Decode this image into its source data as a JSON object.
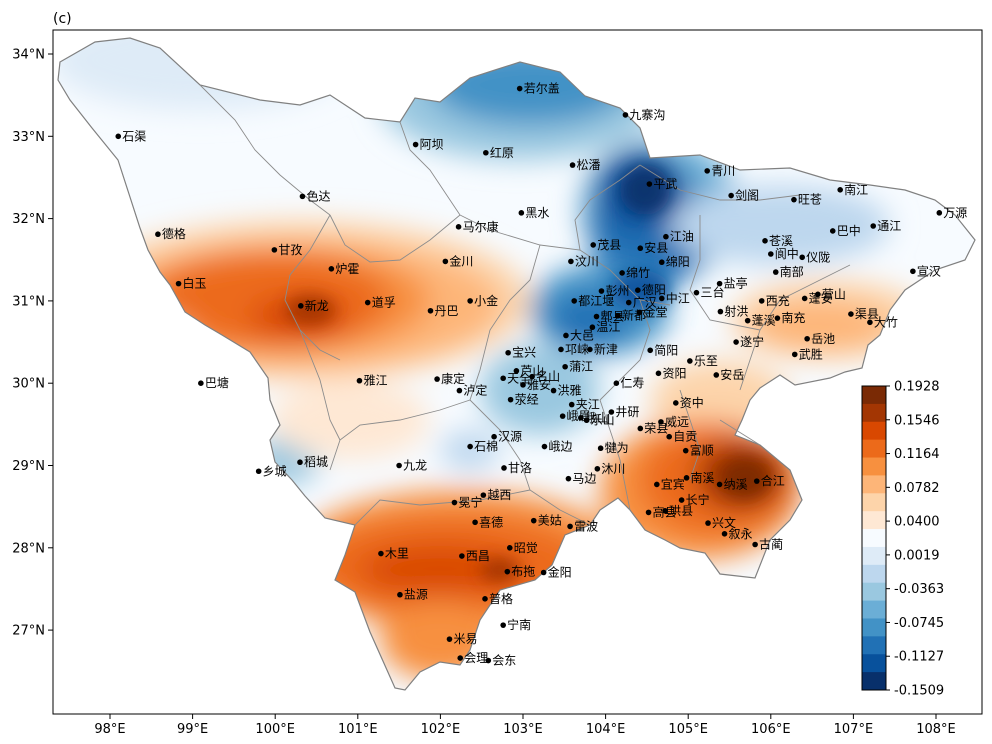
{
  "panel_label": "(c)",
  "axes": {
    "lon_ticks": [
      {
        "value": 98,
        "label": "98°E"
      },
      {
        "value": 99,
        "label": "99°E"
      },
      {
        "value": 100,
        "label": "100°E"
      },
      {
        "value": 101,
        "label": "101°E"
      },
      {
        "value": 102,
        "label": "102°E"
      },
      {
        "value": 103,
        "label": "103°E"
      },
      {
        "value": 104,
        "label": "104°E"
      },
      {
        "value": 105,
        "label": "105°E"
      },
      {
        "value": 106,
        "label": "106°E"
      },
      {
        "value": 107,
        "label": "107°E"
      },
      {
        "value": 108,
        "label": "108°E"
      }
    ],
    "lat_ticks": [
      {
        "value": 34,
        "label": "34°N"
      },
      {
        "value": 33,
        "label": "33°N"
      },
      {
        "value": 32,
        "label": "32°N"
      },
      {
        "value": 31,
        "label": "31°N"
      },
      {
        "value": 30,
        "label": "30°N"
      },
      {
        "value": 29,
        "label": "29°N"
      },
      {
        "value": 28,
        "label": "28°N"
      },
      {
        "value": 27,
        "label": "27°N"
      }
    ]
  },
  "colorbar": {
    "tick_labels": [
      "0.1928",
      "0.1546",
      "0.1164",
      "0.0782",
      "0.0400",
      "0.0019",
      "-0.0363",
      "-0.0745",
      "-0.1127",
      "-0.1509"
    ],
    "colors": [
      "#7a2a05",
      "#a33603",
      "#d94801",
      "#ec6a1a",
      "#f7903f",
      "#fdb578",
      "#fdd4aa",
      "#fee8d4",
      "#f7fbff",
      "#deebf7",
      "#bdd7ee",
      "#9ac8e0",
      "#6baed6",
      "#4292c6",
      "#2171b5",
      "#08519c",
      "#08306b"
    ]
  },
  "field_colors": {
    "background": "#f7fbff",
    "border": "#808080"
  },
  "stations": [
    {
      "name": "石渠",
      "lon": 98.1,
      "lat": 33.0
    },
    {
      "name": "若尔盖",
      "lon": 102.96,
      "lat": 33.58
    },
    {
      "name": "九寨沟",
      "lon": 104.24,
      "lat": 33.26
    },
    {
      "name": "阿坝",
      "lon": 101.7,
      "lat": 32.9
    },
    {
      "name": "红原",
      "lon": 102.55,
      "lat": 32.8
    },
    {
      "name": "松潘",
      "lon": 103.6,
      "lat": 32.65
    },
    {
      "name": "平武",
      "lon": 104.53,
      "lat": 32.42
    },
    {
      "name": "青川",
      "lon": 105.23,
      "lat": 32.58
    },
    {
      "name": "色达",
      "lon": 100.33,
      "lat": 32.27
    },
    {
      "name": "马尔康",
      "lon": 102.22,
      "lat": 31.9
    },
    {
      "name": "黑水",
      "lon": 102.98,
      "lat": 32.07
    },
    {
      "name": "剑阁",
      "lon": 105.52,
      "lat": 32.28
    },
    {
      "name": "旺苍",
      "lon": 106.28,
      "lat": 32.23
    },
    {
      "name": "南江",
      "lon": 106.84,
      "lat": 32.35
    },
    {
      "name": "万源",
      "lon": 108.04,
      "lat": 32.07
    },
    {
      "name": "德格",
      "lon": 98.58,
      "lat": 31.81
    },
    {
      "name": "江油",
      "lon": 104.73,
      "lat": 31.78
    },
    {
      "name": "苍溪",
      "lon": 105.93,
      "lat": 31.73
    },
    {
      "name": "巴中",
      "lon": 106.75,
      "lat": 31.85
    },
    {
      "name": "通江",
      "lon": 107.24,
      "lat": 31.91
    },
    {
      "name": "茂县",
      "lon": 103.85,
      "lat": 31.68
    },
    {
      "name": "安县",
      "lon": 104.42,
      "lat": 31.64
    },
    {
      "name": "阆中",
      "lon": 106.0,
      "lat": 31.57
    },
    {
      "name": "甘孜",
      "lon": 99.99,
      "lat": 31.62
    },
    {
      "name": "金川",
      "lon": 102.06,
      "lat": 31.48
    },
    {
      "name": "汶川",
      "lon": 103.58,
      "lat": 31.48
    },
    {
      "name": "绵竹",
      "lon": 104.2,
      "lat": 31.34
    },
    {
      "name": "绵阳",
      "lon": 104.68,
      "lat": 31.47
    },
    {
      "name": "仪陇",
      "lon": 106.38,
      "lat": 31.53
    },
    {
      "name": "宣汉",
      "lon": 107.72,
      "lat": 31.36
    },
    {
      "name": "炉霍",
      "lon": 100.68,
      "lat": 31.39
    },
    {
      "name": "盐亭",
      "lon": 105.38,
      "lat": 31.21
    },
    {
      "name": "南部",
      "lon": 106.06,
      "lat": 31.35
    },
    {
      "name": "营山",
      "lon": 106.57,
      "lat": 31.08
    },
    {
      "name": "白玉",
      "lon": 98.83,
      "lat": 31.21
    },
    {
      "name": "彭州",
      "lon": 103.95,
      "lat": 31.12
    },
    {
      "name": "德阳",
      "lon": 104.39,
      "lat": 31.13
    },
    {
      "name": "三台",
      "lon": 105.1,
      "lat": 31.1
    },
    {
      "name": "都江堰",
      "lon": 103.62,
      "lat": 31.0
    },
    {
      "name": "广汉",
      "lon": 104.28,
      "lat": 30.98
    },
    {
      "name": "中江",
      "lon": 104.68,
      "lat": 31.03
    },
    {
      "name": "西充",
      "lon": 105.89,
      "lat": 31.0
    },
    {
      "name": "蓬安",
      "lon": 106.41,
      "lat": 31.03
    },
    {
      "name": "渠县",
      "lon": 106.97,
      "lat": 30.84
    },
    {
      "name": "新龙",
      "lon": 100.31,
      "lat": 30.94
    },
    {
      "name": "道孚",
      "lon": 101.12,
      "lat": 30.98
    },
    {
      "name": "小金",
      "lon": 102.36,
      "lat": 31.0
    },
    {
      "name": "丹巴",
      "lon": 101.88,
      "lat": 30.88
    },
    {
      "name": "郫县",
      "lon": 103.89,
      "lat": 30.81
    },
    {
      "name": "射洪",
      "lon": 105.39,
      "lat": 30.87
    },
    {
      "name": "蓬溪",
      "lon": 105.72,
      "lat": 30.76
    },
    {
      "name": "南充",
      "lon": 106.08,
      "lat": 30.79
    },
    {
      "name": "大竹",
      "lon": 107.2,
      "lat": 30.74
    },
    {
      "name": "金堂",
      "lon": 104.41,
      "lat": 30.86
    },
    {
      "name": "大邑",
      "lon": 103.52,
      "lat": 30.58
    },
    {
      "name": "温江",
      "lon": 103.84,
      "lat": 30.68
    },
    {
      "name": "新都",
      "lon": 104.15,
      "lat": 30.82
    },
    {
      "name": "岳池",
      "lon": 106.44,
      "lat": 30.54
    },
    {
      "name": "宝兴",
      "lon": 102.82,
      "lat": 30.37
    },
    {
      "name": "邛崃",
      "lon": 103.46,
      "lat": 30.41
    },
    {
      "name": "简阳",
      "lon": 104.54,
      "lat": 30.4
    },
    {
      "name": "遂宁",
      "lon": 105.58,
      "lat": 30.5
    },
    {
      "name": "武胜",
      "lon": 106.29,
      "lat": 30.35
    },
    {
      "name": "芦山",
      "lon": 102.92,
      "lat": 30.15
    },
    {
      "name": "新津",
      "lon": 103.81,
      "lat": 30.41
    },
    {
      "name": "乐至",
      "lon": 105.02,
      "lat": 30.27
    },
    {
      "name": "天全",
      "lon": 102.76,
      "lat": 30.06
    },
    {
      "name": "名山",
      "lon": 103.11,
      "lat": 30.08
    },
    {
      "name": "蒲江",
      "lon": 103.51,
      "lat": 30.2
    },
    {
      "name": "仁寿",
      "lon": 104.13,
      "lat": 30.0
    },
    {
      "name": "资阳",
      "lon": 104.64,
      "lat": 30.12
    },
    {
      "name": "安岳",
      "lon": 105.34,
      "lat": 30.1
    },
    {
      "name": "巴塘",
      "lon": 99.1,
      "lat": 30.0
    },
    {
      "name": "雅江",
      "lon": 101.02,
      "lat": 30.03
    },
    {
      "name": "康定",
      "lon": 101.96,
      "lat": 30.05
    },
    {
      "name": "泸定",
      "lon": 102.23,
      "lat": 29.91
    },
    {
      "name": "雅安",
      "lon": 103.0,
      "lat": 29.98
    },
    {
      "name": "洪雅",
      "lon": 103.37,
      "lat": 29.91
    },
    {
      "name": "荥经",
      "lon": 102.85,
      "lat": 29.8
    },
    {
      "name": "夹江",
      "lon": 103.59,
      "lat": 29.74
    },
    {
      "name": "资中",
      "lon": 104.85,
      "lat": 29.76
    },
    {
      "name": "井研",
      "lon": 104.07,
      "lat": 29.65
    },
    {
      "name": "威远",
      "lon": 104.67,
      "lat": 29.53
    },
    {
      "name": "峨眉",
      "lon": 103.48,
      "lat": 29.6
    },
    {
      "name": "峨山",
      "lon": 103.7,
      "lat": 29.58
    },
    {
      "name": "乐山",
      "lon": 103.77,
      "lat": 29.55
    },
    {
      "name": "荣县",
      "lon": 104.42,
      "lat": 29.45
    },
    {
      "name": "自贡",
      "lon": 104.77,
      "lat": 29.35
    },
    {
      "name": "汉源",
      "lon": 102.65,
      "lat": 29.35
    },
    {
      "name": "石棉",
      "lon": 102.36,
      "lat": 29.23
    },
    {
      "name": "峨边",
      "lon": 103.26,
      "lat": 29.23
    },
    {
      "name": "犍为",
      "lon": 103.94,
      "lat": 29.21
    },
    {
      "name": "富顺",
      "lon": 104.97,
      "lat": 29.18
    },
    {
      "name": "稻城",
      "lon": 100.3,
      "lat": 29.04
    },
    {
      "name": "乡城",
      "lon": 99.8,
      "lat": 28.93
    },
    {
      "name": "九龙",
      "lon": 101.5,
      "lat": 29.0
    },
    {
      "name": "甘洛",
      "lon": 102.77,
      "lat": 28.97
    },
    {
      "name": "沐川",
      "lon": 103.9,
      "lat": 28.96
    },
    {
      "name": "南溪",
      "lon": 104.98,
      "lat": 28.85
    },
    {
      "name": "纳溪",
      "lon": 105.38,
      "lat": 28.77
    },
    {
      "name": "合江",
      "lon": 105.83,
      "lat": 28.81
    },
    {
      "name": "马边",
      "lon": 103.55,
      "lat": 28.84
    },
    {
      "name": "宜宾",
      "lon": 104.62,
      "lat": 28.77
    },
    {
      "name": "长宁",
      "lon": 104.92,
      "lat": 28.58
    },
    {
      "name": "冕宁",
      "lon": 102.17,
      "lat": 28.55
    },
    {
      "name": "越西",
      "lon": 102.52,
      "lat": 28.64
    },
    {
      "name": "高县",
      "lon": 104.52,
      "lat": 28.43
    },
    {
      "name": "兴文",
      "lon": 105.24,
      "lat": 28.3
    },
    {
      "name": "珙县",
      "lon": 104.72,
      "lat": 28.45
    },
    {
      "name": "叙永",
      "lon": 105.44,
      "lat": 28.17
    },
    {
      "name": "古蔺",
      "lon": 105.81,
      "lat": 28.04
    },
    {
      "name": "美姑",
      "lon": 103.13,
      "lat": 28.33
    },
    {
      "name": "雷波",
      "lon": 103.57,
      "lat": 28.26
    },
    {
      "name": "喜德",
      "lon": 102.42,
      "lat": 28.31
    },
    {
      "name": "木里",
      "lon": 101.28,
      "lat": 27.93
    },
    {
      "name": "西昌",
      "lon": 102.26,
      "lat": 27.9
    },
    {
      "name": "昭觉",
      "lon": 102.84,
      "lat": 28.0
    },
    {
      "name": "布拖",
      "lon": 102.81,
      "lat": 27.71
    },
    {
      "name": "金阳",
      "lon": 103.25,
      "lat": 27.7
    },
    {
      "name": "盐源",
      "lon": 101.51,
      "lat": 27.43
    },
    {
      "name": "普格",
      "lon": 102.54,
      "lat": 27.38
    },
    {
      "name": "宁南",
      "lon": 102.76,
      "lat": 27.06
    },
    {
      "name": "米易",
      "lon": 102.11,
      "lat": 26.89
    },
    {
      "name": "会理",
      "lon": 102.24,
      "lat": 26.66
    },
    {
      "name": "会东",
      "lon": 102.58,
      "lat": 26.63
    }
  ]
}
